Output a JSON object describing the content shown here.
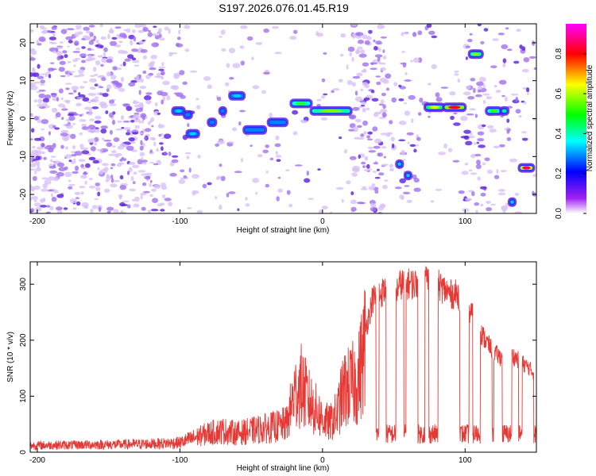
{
  "title": "S197.2026.076.01.45.R19",
  "chart_data": [
    {
      "type": "heatmap",
      "xlabel": "Height of straight line (km)",
      "ylabel": "Frequency (Hz)",
      "xlim": [
        -205,
        150
      ],
      "ylim": [
        -25,
        25
      ],
      "xticks": [
        -200,
        -100,
        0,
        100
      ],
      "yticks": [
        -20,
        -10,
        0,
        10,
        20
      ],
      "colorbar": {
        "label": "Normalized spectral amplitude",
        "range": [
          0,
          0.95
        ],
        "ticks": [
          "0.0",
          "0.2",
          "0.4",
          "0.6",
          "0.8"
        ],
        "colormap": "rainbow (purple-blue-cyan-green-yellow-red-magenta)"
      },
      "features": [
        {
          "x": [
            -105,
            -97
          ],
          "y": 2,
          "amp": 0.35
        },
        {
          "x": [
            -97,
            -92
          ],
          "y": 1,
          "amp": 0.3
        },
        {
          "x": [
            -95,
            -87
          ],
          "y": -4,
          "amp": 0.35
        },
        {
          "x": [
            -80,
            -75
          ],
          "y": -1,
          "amp": 0.3
        },
        {
          "x": [
            -72,
            -68
          ],
          "y": 2,
          "amp": 0.3
        },
        {
          "x": [
            -65,
            -55
          ],
          "y": 6,
          "amp": 0.35
        },
        {
          "x": [
            -55,
            -40
          ],
          "y": -3,
          "amp": 0.3
        },
        {
          "x": [
            -38,
            -25
          ],
          "y": -1,
          "amp": 0.3
        },
        {
          "x": [
            -22,
            -8
          ],
          "y": 4,
          "amp": 0.55
        },
        {
          "x": [
            -8,
            20
          ],
          "y": 2,
          "amp": 0.6
        },
        {
          "x": [
            52,
            56
          ],
          "y": -12,
          "amp": 0.35
        },
        {
          "x": [
            58,
            62
          ],
          "y": -15,
          "amp": 0.35
        },
        {
          "x": [
            72,
            85
          ],
          "y": 3,
          "amp": 0.65
        },
        {
          "x": [
            85,
            100
          ],
          "y": 3,
          "amp": 0.85
        },
        {
          "x": [
            103,
            112
          ],
          "y": 17,
          "amp": 0.6
        },
        {
          "x": [
            115,
            125
          ],
          "y": 2,
          "amp": 0.55
        },
        {
          "x": [
            125,
            130
          ],
          "y": 2,
          "amp": 0.45
        },
        {
          "x": [
            131,
            135
          ],
          "y": -22,
          "amp": 0.35
        },
        {
          "x": [
            138,
            148
          ],
          "y": -13,
          "amp": 0.9
        }
      ]
    },
    {
      "type": "line",
      "xlabel": "Height of straight line (km)",
      "ylabel": "SNR (10 * v/v)",
      "xlim": [
        -205,
        150
      ],
      "ylim": [
        0,
        340
      ],
      "xticks": [
        -200,
        -100,
        0,
        100
      ],
      "yticks": [
        0,
        100,
        200,
        300
      ],
      "color": "#e53935",
      "series": [
        {
          "x": [
            -205,
            -190,
            -175,
            -160,
            -145,
            -130,
            -115,
            -100,
            -90,
            -80,
            -70,
            -60,
            -50,
            -40,
            -30,
            -25,
            -20,
            -15,
            -10,
            -5,
            0,
            5,
            10,
            15,
            20,
            25,
            30,
            35,
            40,
            45,
            50,
            55,
            60,
            65,
            70,
            75,
            80,
            85,
            90,
            95,
            100,
            105,
            110,
            115,
            120,
            125,
            130,
            135,
            140,
            145,
            148
          ],
          "values": [
            14,
            15,
            15,
            16,
            16,
            17,
            18,
            20,
            30,
            40,
            45,
            40,
            45,
            50,
            55,
            60,
            120,
            140,
            110,
            90,
            70,
            60,
            80,
            130,
            140,
            150,
            230,
            290,
            300,
            310,
            300,
            320,
            320,
            320,
            330,
            330,
            320,
            310,
            300,
            300,
            280,
            260,
            230,
            210,
            190,
            180,
            190,
            180,
            170,
            160,
            150
          ]
        }
      ]
    }
  ]
}
